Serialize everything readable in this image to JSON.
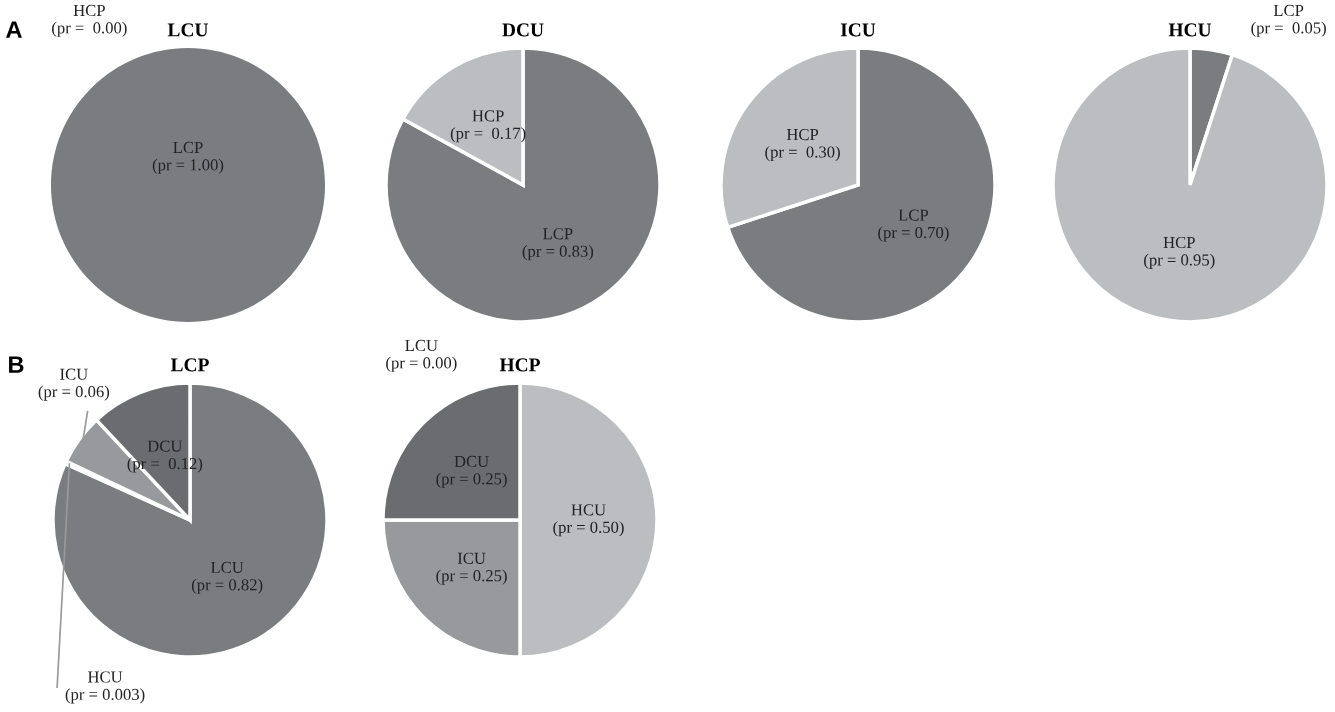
{
  "chart_data": [
    {
      "type": "pie",
      "title": "LCU",
      "annotations": [
        "A"
      ],
      "categories": [
        "LCP",
        "HCP"
      ],
      "values": [
        1.0,
        0.0
      ],
      "value_labels": [
        "(pr = 1.00)",
        "(pr =  0.00)"
      ],
      "colors": [
        "#7b7c80",
        "#bcbdc1"
      ]
    },
    {
      "type": "pie",
      "title": "DCU",
      "categories": [
        "LCP",
        "HCP"
      ],
      "values": [
        0.83,
        0.17
      ],
      "value_labels": [
        "(pr = 0.83)",
        "(pr =  0.17)"
      ],
      "colors": [
        "#7b7c80",
        "#bcbdc1"
      ]
    },
    {
      "type": "pie",
      "title": "ICU",
      "categories": [
        "LCP",
        "HCP"
      ],
      "values": [
        0.7,
        0.3
      ],
      "value_labels": [
        "(pr = 0.70)",
        "(pr =  0.30)"
      ],
      "colors": [
        "#7b7c80",
        "#bcbdc1"
      ]
    },
    {
      "type": "pie",
      "title": "HCU",
      "categories": [
        "LCP",
        "HCP"
      ],
      "values": [
        0.05,
        0.95
      ],
      "value_labels": [
        "(pr =  0.05)",
        "(pr = 0.95)"
      ],
      "colors": [
        "#7b7c80",
        "#bcbdc1"
      ]
    },
    {
      "type": "pie",
      "title": "LCP",
      "annotations": [
        "B"
      ],
      "categories": [
        "LCU",
        "HCU",
        "ICU",
        "DCU"
      ],
      "values": [
        0.82,
        0.003,
        0.06,
        0.12
      ],
      "value_labels": [
        "(pr = 0.82)",
        "(pr = 0.003)",
        "(pr = 0.06)",
        "(pr =  0.12)"
      ],
      "colors": [
        "#7b7c80",
        "#bcbdc1",
        "#98999d",
        "#6b6c70"
      ]
    },
    {
      "type": "pie",
      "title": "HCP",
      "categories": [
        "HCU",
        "ICU",
        "DCU",
        "LCU"
      ],
      "values": [
        0.5,
        0.25,
        0.25,
        0.0
      ],
      "value_labels": [
        "(pr = 0.50)",
        "(pr = 0.25)",
        "(pr = 0.25)",
        "(pr = 0.00)"
      ],
      "colors": [
        "#bcbdc1",
        "#98999d",
        "#6b6c70",
        "#7b7c80"
      ]
    }
  ]
}
